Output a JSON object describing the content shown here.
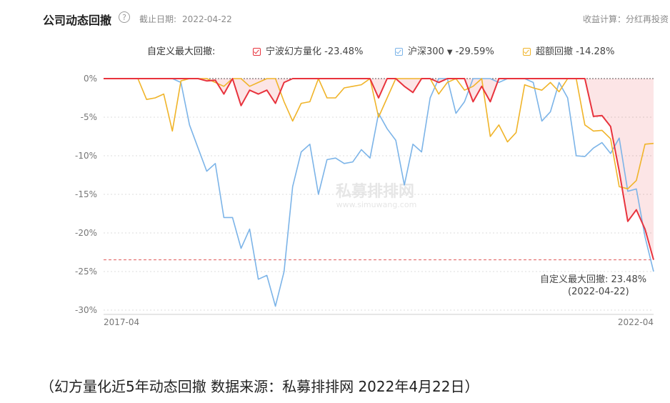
{
  "header": {
    "title": "公司动态回撤",
    "help_icon": "question-circle-icon",
    "cutoff_label": "截止日期:",
    "cutoff_date": "2022-04-22",
    "calc_label": "收益计算：分红再投资"
  },
  "legend": {
    "label": "自定义最大回撤:",
    "items": [
      {
        "name": "宁波幻方量化",
        "value": "-23.48%",
        "color": "#e8333d",
        "checked": true
      },
      {
        "name": "沪深300",
        "caret": "▼",
        "value": "-29.59%",
        "color": "#7cb4e8",
        "checked": true
      },
      {
        "name": "超额回撤",
        "value": "-14.28%",
        "color": "#f0b429",
        "checked": true
      }
    ]
  },
  "chart_data": {
    "type": "line",
    "title": "",
    "xlabel": "",
    "ylabel": "",
    "x_tick_labels": [
      "2017-04",
      "2022-04"
    ],
    "y_ticks": [
      0,
      -5,
      -10,
      -15,
      -20,
      -25,
      -30
    ],
    "y_tick_labels": [
      "0%",
      "-5%",
      "-10%",
      "-15%",
      "-20%",
      "-25%",
      "-30%"
    ],
    "ylim": [
      -30,
      0
    ],
    "grid": "horizontal-dotted",
    "reference_line": {
      "value": -23.48,
      "style": "dashed",
      "color": "#e05a5a"
    },
    "watermark": "私募排排网 www.simuwang.com",
    "series": [
      {
        "name": "沪深300",
        "color": "#7cb4e8",
        "values": [
          0,
          0,
          0,
          0,
          0,
          0,
          0,
          0,
          0,
          -0.5,
          -6,
          -9,
          -12,
          -11,
          -18,
          -18,
          -22,
          -19.5,
          -26,
          -25.5,
          -29.5,
          -25,
          -14,
          -9.5,
          -8.5,
          -15,
          -10.5,
          -10.3,
          -11,
          -10.8,
          -9.2,
          -10.3,
          -4.5,
          -6.5,
          -8,
          -13.8,
          -8.5,
          -9.5,
          -2.5,
          0,
          0,
          -4.5,
          -3,
          0,
          0,
          0,
          -0.5,
          0,
          0,
          0,
          -0.5,
          -5.5,
          -4.3,
          -0.5,
          -2.5,
          -10,
          -10.1,
          -9,
          -8.3,
          -9.7,
          -7.7,
          -14.6,
          -14.3,
          -20.5,
          -25
        ]
      },
      {
        "name": "宁波幻方量化",
        "color": "#e8333d",
        "values": [
          0,
          0,
          0,
          0,
          0,
          0,
          0,
          0,
          0,
          0,
          0,
          0,
          -0.3,
          -0.2,
          -2,
          0,
          -3.5,
          -1.5,
          -2,
          -1.5,
          -3.2,
          -0.5,
          0,
          0,
          0,
          0,
          0,
          0,
          0,
          0,
          0,
          0,
          -2.5,
          0,
          0,
          -1,
          -1.8,
          0,
          0,
          -0.5,
          0,
          0,
          0,
          -3,
          -1,
          -3,
          0,
          0,
          0,
          0,
          0,
          0,
          0,
          0,
          0,
          0,
          0,
          -4.9,
          -4.8,
          -6.2,
          -12,
          -18.5,
          -17,
          -19.5,
          -23.48
        ]
      },
      {
        "name": "超额回撤",
        "color": "#f0b429",
        "values": [
          0,
          0,
          0,
          0,
          0,
          -2.7,
          -2.5,
          -2,
          -6.8,
          -0.3,
          0,
          0,
          0,
          -0.5,
          -1,
          0,
          0,
          -1,
          -0.5,
          0,
          0,
          -3,
          -5.5,
          -3.2,
          -3,
          0,
          -2.5,
          -2.5,
          -1.2,
          -1,
          -0.8,
          0,
          -5,
          -2.5,
          0,
          0,
          0,
          0,
          0,
          -2,
          -0.5,
          0,
          -1.5,
          -1,
          0,
          -7.5,
          -6,
          -8.2,
          -7,
          -0.8,
          -1.2,
          -1.5,
          -0.5,
          -1.7,
          0,
          0,
          -6,
          -6.8,
          -6.7,
          -7.8,
          -14,
          -14.28,
          -13.2,
          -8.5,
          -8.4
        ]
      }
    ],
    "annotation": {
      "label": "自定义最大回撤:",
      "value": "23.48%",
      "date": "(2022-04-22)"
    }
  },
  "caption": "（幻方量化近5年动态回撤 数据来源：私募排排网 2022年4月22日）"
}
